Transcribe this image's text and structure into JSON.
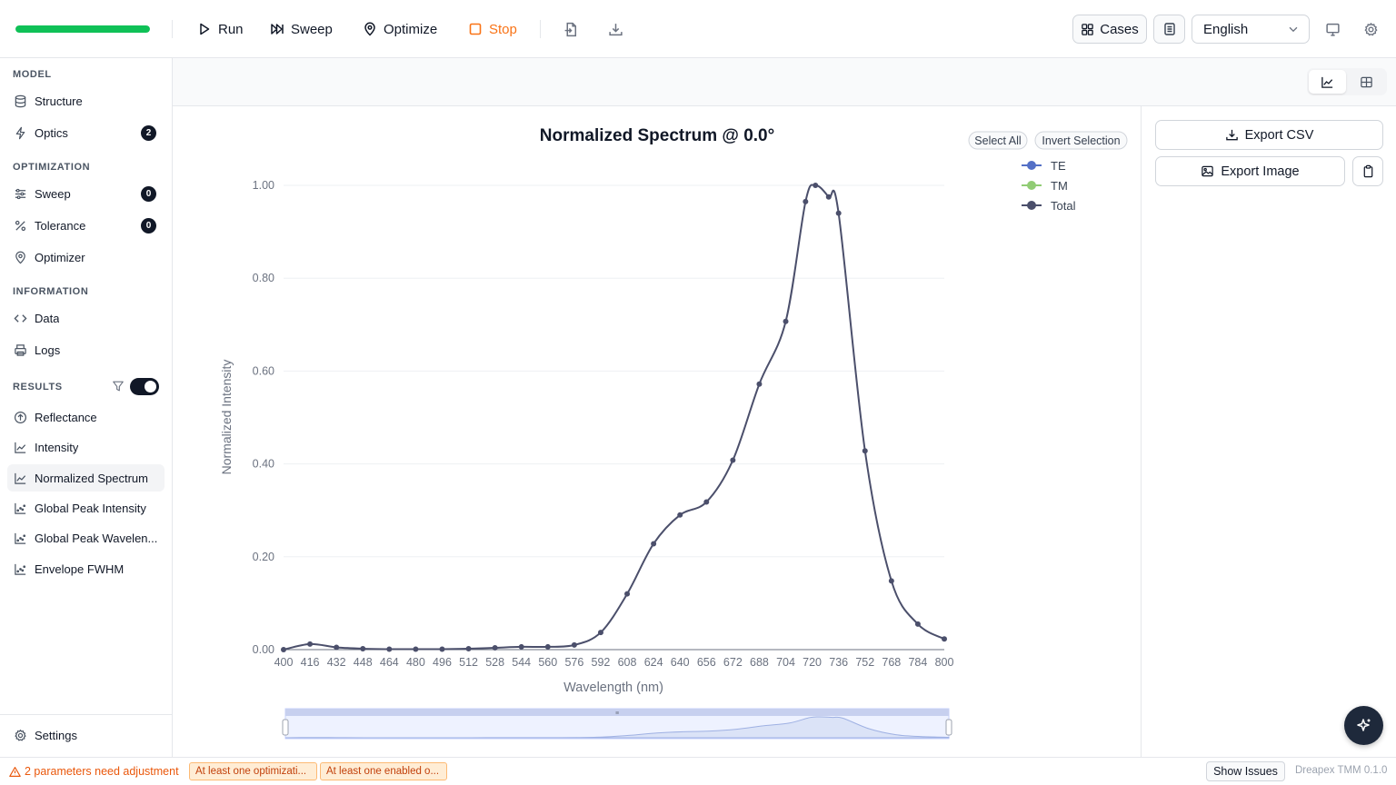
{
  "toolbar": {
    "progress_fraction": 1.0,
    "run_label": "Run",
    "sweep_label": "Sweep",
    "optimize_label": "Optimize",
    "stop_label": "Stop",
    "cases_label": "Cases",
    "language": "English"
  },
  "sidebar": {
    "model_title": "MODEL",
    "model_items": [
      {
        "label": "Structure",
        "icon": "database-icon"
      },
      {
        "label": "Optics",
        "icon": "bolt-icon",
        "badge": "2"
      }
    ],
    "optimization_title": "OPTIMIZATION",
    "optimization_items": [
      {
        "label": "Sweep",
        "icon": "sliders-icon",
        "badge": "0"
      },
      {
        "label": "Tolerance",
        "icon": "percent-icon",
        "badge": "0"
      },
      {
        "label": "Optimizer",
        "icon": "map-pin-icon"
      }
    ],
    "information_title": "INFORMATION",
    "information_items": [
      {
        "label": "Data",
        "icon": "code-icon"
      },
      {
        "label": "Logs",
        "icon": "printer-icon"
      }
    ],
    "results_title": "RESULTS",
    "results_filter_enabled": true,
    "results_items": [
      {
        "label": "Reflectance",
        "icon": "arrow-up-circle-icon"
      },
      {
        "label": "Intensity",
        "icon": "line-chart-icon"
      },
      {
        "label": "Normalized Spectrum",
        "icon": "line-chart-icon",
        "active": true
      },
      {
        "label": "Global Peak Intensity",
        "icon": "scatter-chart-icon"
      },
      {
        "label": "Global Peak Wavelen...",
        "icon": "scatter-chart-icon"
      },
      {
        "label": "Envelope FWHM",
        "icon": "scatter-chart-icon"
      }
    ],
    "settings_label": "Settings"
  },
  "legend_controls": {
    "select_all": "Select All",
    "invert_selection": "Invert Selection"
  },
  "right_panel": {
    "export_csv": "Export CSV",
    "export_image": "Export Image"
  },
  "status": {
    "warning": "2 parameters need adjustment",
    "chip1": "At least one optimizati...",
    "chip2": "At least one enabled o...",
    "show_issues": "Show Issues",
    "version": "Dreapex TMM 0.1.0"
  },
  "chart_data": {
    "type": "line",
    "title": "Normalized Spectrum @ 0.0°",
    "xlabel": "Wavelength (nm)",
    "ylabel": "Normalized Intensity",
    "xlim": [
      400,
      800
    ],
    "ylim": [
      0,
      1.0
    ],
    "x_ticks": [
      400,
      416,
      432,
      448,
      464,
      480,
      496,
      512,
      528,
      544,
      560,
      576,
      592,
      608,
      624,
      640,
      656,
      672,
      688,
      704,
      720,
      736,
      752,
      768,
      784,
      800
    ],
    "y_ticks": [
      "0.00",
      "0.20",
      "0.40",
      "0.60",
      "0.80",
      "1.00"
    ],
    "grid": true,
    "legend_position": "top-right",
    "series": [
      {
        "name": "TE",
        "color": "#5470c6",
        "values": []
      },
      {
        "name": "TM",
        "color": "#91cc75",
        "values": []
      },
      {
        "name": "Total",
        "color": "#4b4f6b",
        "x": [
          400,
          416,
          432,
          448,
          464,
          480,
          496,
          512,
          528,
          544,
          560,
          576,
          592,
          608,
          624,
          640,
          656,
          672,
          688,
          704,
          716,
          722,
          730,
          736,
          752,
          768,
          784,
          800
        ],
        "values": [
          0.0,
          0.012,
          0.005,
          0.002,
          0.001,
          0.001,
          0.001,
          0.002,
          0.004,
          0.006,
          0.006,
          0.01,
          0.037,
          0.12,
          0.228,
          0.29,
          0.318,
          0.408,
          0.572,
          0.707,
          0.965,
          1.0,
          0.975,
          0.94,
          0.428,
          0.148,
          0.055,
          0.023
        ]
      }
    ]
  }
}
